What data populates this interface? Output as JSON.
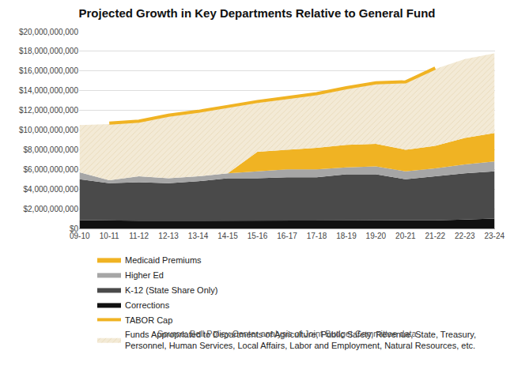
{
  "chart_data": {
    "type": "area",
    "stacked": true,
    "title": "Projected Growth in Key Departments Relative to General Fund",
    "annotations": [
      "Source: Bell Policy Center analysis of Joint Budget Committee data"
    ],
    "categories": [
      "09-10",
      "10-11",
      "11-12",
      "12-13",
      "13-14",
      "14-15",
      "15-16",
      "16-17",
      "17-18",
      "18-19",
      "19-20",
      "20-21",
      "21-22",
      "22-23",
      "23-24"
    ],
    "series": [
      {
        "name": "Corrections",
        "color": "#111111",
        "type": "area",
        "values": [
          850000000,
          800000000,
          780000000,
          780000000,
          780000000,
          780000000,
          800000000,
          800000000,
          820000000,
          820000000,
          820000000,
          800000000,
          820000000,
          900000000,
          1000000000
        ]
      },
      {
        "name": "K-12 (State Share Only)",
        "color": "#4a4a4a",
        "type": "area",
        "values": [
          4150000000,
          3800000000,
          3920000000,
          3820000000,
          4020000000,
          4320000000,
          4300000000,
          4400000000,
          4380000000,
          4680000000,
          4680000000,
          4200000000,
          4480000000,
          4700000000,
          4800000000
        ]
      },
      {
        "name": "Higher Ed",
        "color": "#a6a6a6",
        "type": "area",
        "values": [
          700000000,
          300000000,
          600000000,
          500000000,
          500000000,
          500000000,
          700000000,
          800000000,
          800000000,
          700000000,
          800000000,
          800000000,
          800000000,
          900000000,
          1000000000
        ]
      },
      {
        "name": "Medicaid Premiums",
        "color": "#f0b323",
        "type": "area",
        "values": [
          0,
          0,
          0,
          0,
          0,
          0,
          2000000000,
          2000000000,
          2200000000,
          2300000000,
          2300000000,
          2200000000,
          2300000000,
          2700000000,
          2900000000
        ]
      },
      {
        "name": "Funds Appropriated to Departments of Agriculture, Public Safety, Revenue, State, Treasury, Personnel, Human Services, Local Affairs, Labor and Employment, Natural Resources, etc.",
        "color": "#f3ead6",
        "type": "area",
        "values": [
          4800000000,
          5700000000,
          5600000000,
          6300000000,
          6600000000,
          6700000000,
          5100000000,
          5300000000,
          5500000000,
          5700000000,
          6200000000,
          6800000000,
          7800000000,
          8000000000,
          8100000000
        ]
      },
      {
        "name": "TABOR Cap",
        "color": "#f0b323",
        "type": "line",
        "values": [
          null,
          10700000000,
          10900000000,
          11500000000,
          11900000000,
          12400000000,
          12900000000,
          13300000000,
          13700000000,
          14300000000,
          14800000000,
          14900000000,
          16300000000,
          null,
          null
        ]
      }
    ],
    "legend": "bottom",
    "grid": true,
    "ylim": [
      0,
      20000000000
    ],
    "yticks": [
      {
        "value": 0,
        "label": "$0"
      },
      {
        "value": 2000000000,
        "label": "$2,000,000,000"
      },
      {
        "value": 4000000000,
        "label": "$4,000,000,000"
      },
      {
        "value": 6000000000,
        "label": "$6,000,000,000"
      },
      {
        "value": 8000000000,
        "label": "$8,000,000,000"
      },
      {
        "value": 10000000000,
        "label": "$10,000,000,000"
      },
      {
        "value": 12000000000,
        "label": "$12,000,000,000"
      },
      {
        "value": 14000000000,
        "label": "$14,000,000,000"
      },
      {
        "value": 16000000000,
        "label": "$16,000,000,000"
      },
      {
        "value": 18000000000,
        "label": "$18,000,000,000"
      },
      {
        "value": 20000000000,
        "label": "$20,000,000,000"
      }
    ]
  }
}
